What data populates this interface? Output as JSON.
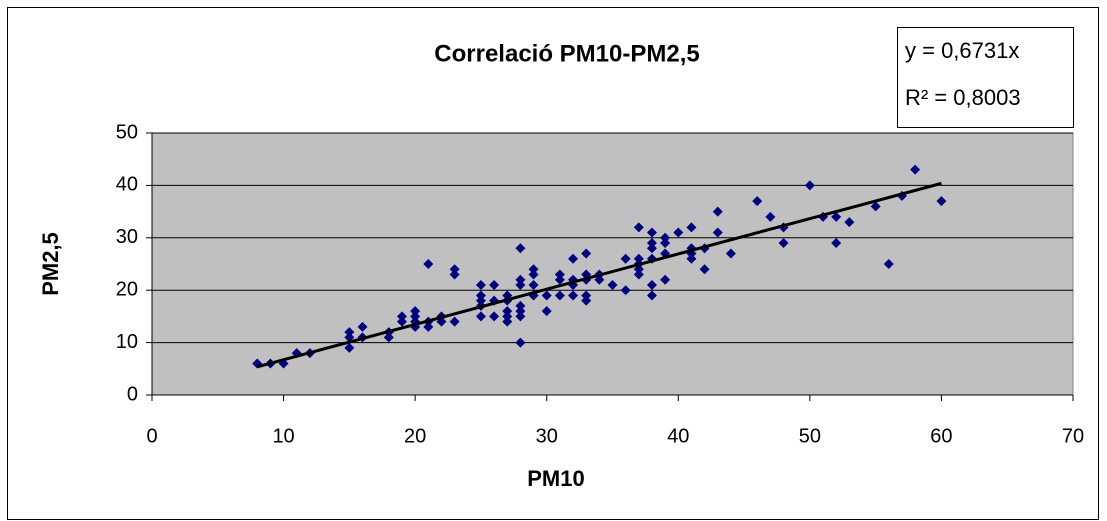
{
  "chart_data": {
    "type": "scatter",
    "title": "Correlació PM10-PM2,5",
    "x_label": "PM10",
    "y_label": "PM2,5",
    "color": "#000080",
    "x": [
      8,
      9,
      10,
      11,
      12,
      15,
      15,
      15,
      16,
      16,
      18,
      18,
      19,
      19,
      20,
      20,
      20,
      20,
      21,
      21,
      21,
      22,
      22,
      23,
      23,
      23,
      25,
      25,
      25,
      25,
      25,
      26,
      26,
      26,
      27,
      27,
      27,
      27,
      27,
      28,
      28,
      28,
      28,
      28,
      28,
      28,
      29,
      29,
      29,
      29,
      30,
      30,
      31,
      31,
      31,
      32,
      32,
      32,
      32,
      33,
      33,
      33,
      33,
      33,
      34,
      34,
      35,
      36,
      36,
      37,
      37,
      37,
      37,
      37,
      38,
      38,
      38,
      38,
      38,
      38,
      39,
      39,
      39,
      39,
      40,
      41,
      41,
      41,
      41,
      42,
      42,
      43,
      43,
      44,
      46,
      47,
      48,
      48,
      50,
      51,
      52,
      52,
      53,
      55,
      56,
      57,
      58,
      60
    ],
    "values": [
      6,
      6,
      6,
      8,
      8,
      9,
      11,
      12,
      11,
      13,
      11,
      12,
      14,
      15,
      13,
      14,
      15,
      16,
      13,
      14,
      25,
      14,
      15,
      14,
      23,
      24,
      15,
      17,
      18,
      19,
      21,
      15,
      18,
      21,
      14,
      15,
      16,
      18,
      19,
      10,
      15,
      16,
      17,
      21,
      22,
      28,
      19,
      21,
      23,
      24,
      16,
      19,
      19,
      22,
      23,
      19,
      21,
      22,
      26,
      18,
      19,
      22,
      23,
      27,
      22,
      23,
      21,
      20,
      26,
      23,
      24,
      25,
      26,
      32,
      19,
      21,
      26,
      28,
      29,
      31,
      22,
      27,
      29,
      30,
      31,
      26,
      27,
      28,
      32,
      24,
      28,
      31,
      35,
      27,
      37,
      34,
      29,
      32,
      40,
      34,
      29,
      34,
      33,
      36,
      25,
      38,
      43,
      37
    ],
    "xlim": [
      0,
      70
    ],
    "ylim": [
      0,
      50
    ],
    "xticks": [
      0,
      10,
      20,
      30,
      40,
      50,
      60,
      70
    ],
    "yticks": [
      0,
      10,
      20,
      30,
      40,
      50
    ],
    "grid": true,
    "trendline": {
      "slope": 0.6731,
      "xlim": [
        8,
        60
      ],
      "color": "#000000"
    },
    "annotations": [
      "y = 0,6731x",
      "R² = 0,8003"
    ]
  }
}
